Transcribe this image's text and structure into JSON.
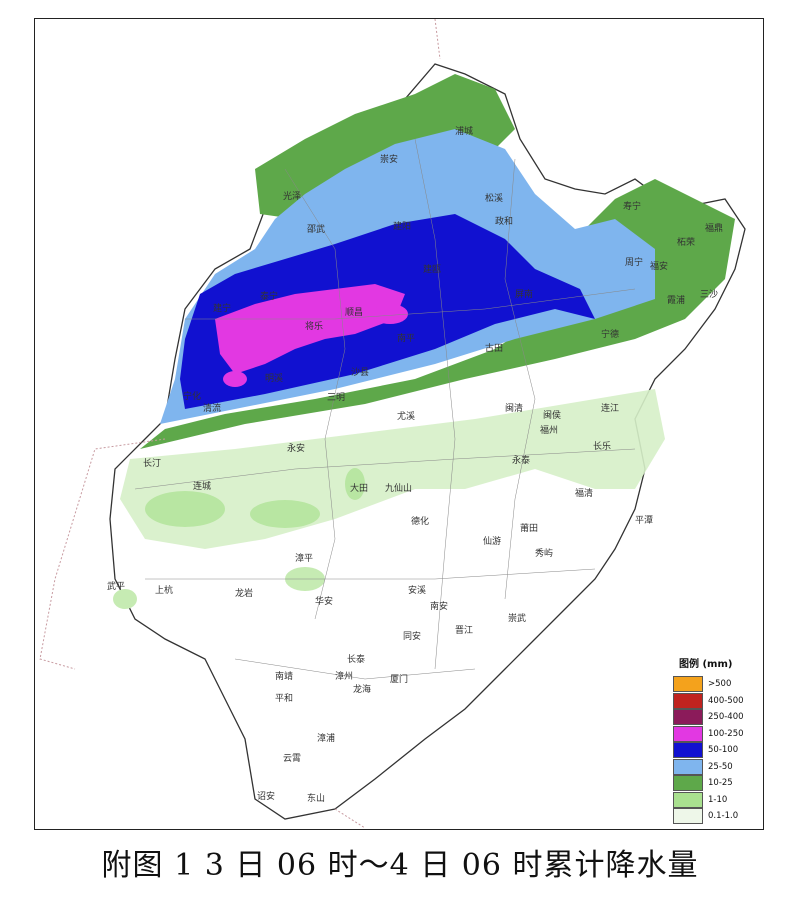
{
  "caption": "附图 1 3 日 06 时～4 日 06 时累计降水量",
  "legend": {
    "title": "图例 (mm)",
    "items": [
      {
        "label": ">500",
        "color": "#f4a21c"
      },
      {
        "label": "400-500",
        "color": "#c0231f"
      },
      {
        "label": "250-400",
        "color": "#8b1b5a"
      },
      {
        "label": "100-250",
        "color": "#e238e2"
      },
      {
        "label": "50-100",
        "color": "#1111d0"
      },
      {
        "label": "25-50",
        "color": "#7fb5ee"
      },
      {
        "label": "10-25",
        "color": "#5ea84a"
      },
      {
        "label": "1-10",
        "color": "#a9e08f"
      },
      {
        "label": "0.1-1.0",
        "color": "#eef7e9"
      }
    ]
  },
  "cities": [
    "浦城",
    "崇安",
    "光泽",
    "邵武",
    "建阳",
    "松溪",
    "政和",
    "寿宁",
    "柘荣",
    "福鼎",
    "周宁",
    "福安",
    "霞浦",
    "三沙",
    "建宁",
    "泰宁",
    "将乐",
    "顺昌",
    "南平",
    "建瓯",
    "屏南",
    "宁德",
    "古田",
    "明溪",
    "沙县",
    "宁化",
    "清流",
    "永安",
    "三明",
    "尤溪",
    "闽清",
    "闽侯",
    "连江",
    "福州",
    "长乐",
    "长汀",
    "连城",
    "大田",
    "九仙山",
    "永泰",
    "平潭",
    "福清",
    "德化",
    "莆田",
    "仙游",
    "秀屿",
    "武平",
    "上杭",
    "龙岩",
    "漳平",
    "华安",
    "安溪",
    "南安",
    "晋江",
    "崇武",
    "同安",
    "厦门",
    "长泰",
    "漳州",
    "南靖",
    "龙海",
    "平和",
    "漳浦",
    "云霄",
    "诏安",
    "东山"
  ]
}
